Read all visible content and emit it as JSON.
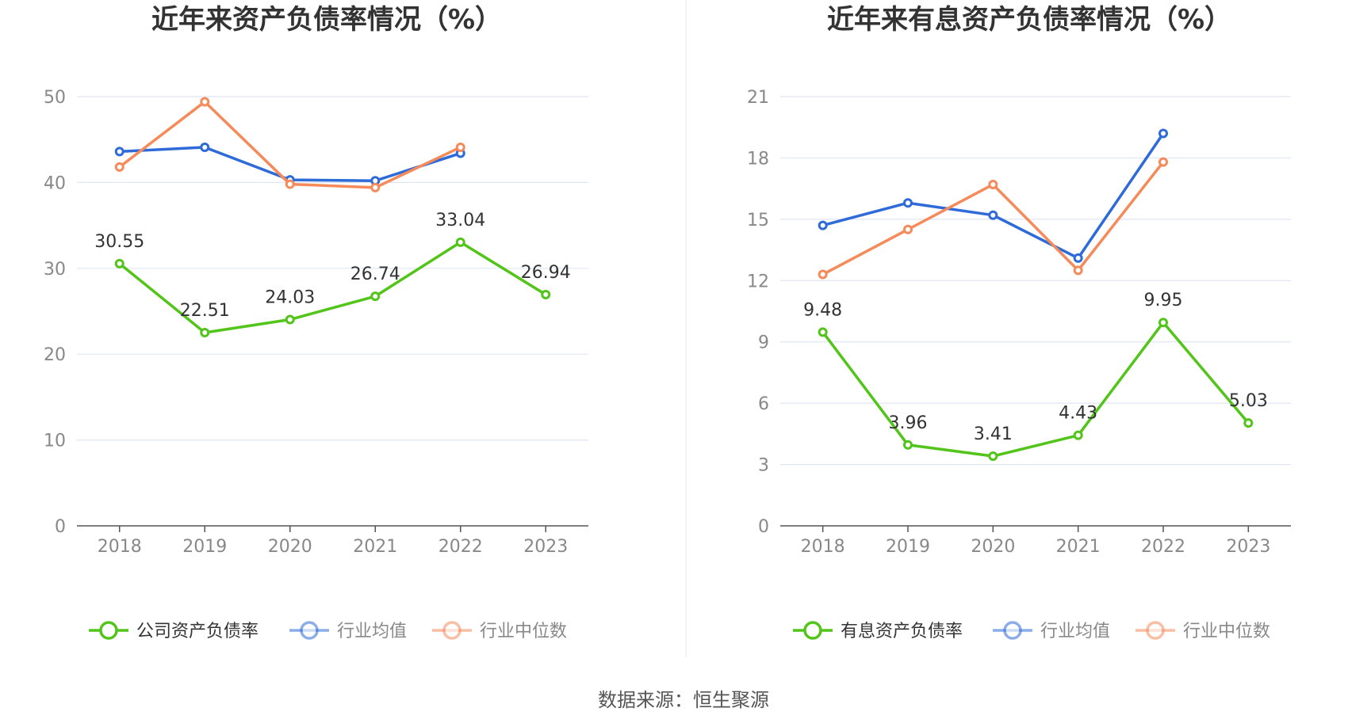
{
  "source": "数据来源：恒生聚源",
  "chart_data": [
    {
      "type": "line",
      "title": "近年来资产负债率情况（%）",
      "categories": [
        "2018",
        "2019",
        "2020",
        "2021",
        "2022",
        "2023"
      ],
      "ylim": [
        0,
        50
      ],
      "yticks": [
        0,
        10,
        20,
        30,
        40,
        50
      ],
      "grid": true,
      "legend_position": "bottom",
      "series": [
        {
          "name": "公司资产负债率",
          "color": "#52c41a",
          "values": [
            30.55,
            22.51,
            24.03,
            26.74,
            33.04,
            26.94
          ],
          "labels": [
            "30.55",
            "22.51",
            "24.03",
            "26.74",
            "33.04",
            "26.94"
          ],
          "legend_text_color": "#333333"
        },
        {
          "name": "行业均值",
          "color": "#2f6bd8",
          "values": [
            43.6,
            44.1,
            40.3,
            40.2,
            43.4,
            null
          ],
          "legend_text_color": "#888888"
        },
        {
          "name": "行业中位数",
          "color": "#f58a5b",
          "values": [
            41.8,
            49.4,
            39.8,
            39.4,
            44.1,
            null
          ],
          "legend_text_color": "#888888"
        }
      ]
    },
    {
      "type": "line",
      "title": "近年来有息资产负债率情况（%）",
      "categories": [
        "2018",
        "2019",
        "2020",
        "2021",
        "2022",
        "2023"
      ],
      "ylim": [
        0,
        21
      ],
      "yticks": [
        0,
        3,
        6,
        9,
        12,
        15,
        18,
        21
      ],
      "grid": true,
      "legend_position": "bottom",
      "series": [
        {
          "name": "有息资产负债率",
          "color": "#52c41a",
          "values": [
            9.48,
            3.96,
            3.41,
            4.43,
            9.95,
            5.03
          ],
          "labels": [
            "9.48",
            "3.96",
            "3.41",
            "4.43",
            "9.95",
            "5.03"
          ],
          "legend_text_color": "#333333"
        },
        {
          "name": "行业均值",
          "color": "#2f6bd8",
          "values": [
            14.7,
            15.8,
            15.2,
            13.1,
            19.2,
            null
          ],
          "legend_text_color": "#888888"
        },
        {
          "name": "行业中位数",
          "color": "#f58a5b",
          "values": [
            12.3,
            14.5,
            16.7,
            12.5,
            17.8,
            null
          ],
          "legend_text_color": "#888888"
        }
      ]
    }
  ]
}
